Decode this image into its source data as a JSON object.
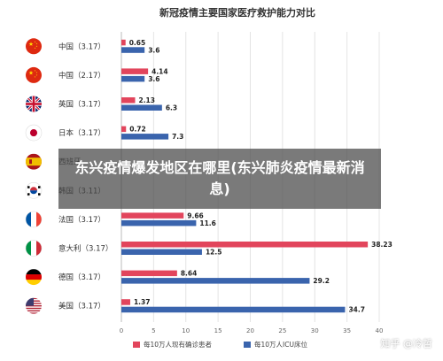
{
  "chart_data": {
    "type": "bar",
    "orientation": "horizontal",
    "title": "新冠疫情主要国家医疗救护能力对比",
    "categories": [
      {
        "label": "中国（3.17）",
        "flag": "china-flag"
      },
      {
        "label": "中国（2.17）",
        "flag": "china-flag"
      },
      {
        "label": "英国（3.17）",
        "flag": "uk-flag"
      },
      {
        "label": "日本（3.17）",
        "flag": "japan-flag"
      },
      {
        "label": "西班牙",
        "flag": "spain-flag"
      },
      {
        "label": "韩国（3.11）",
        "flag": "korea-flag"
      },
      {
        "label": "法国（3.17）",
        "flag": "france-flag"
      },
      {
        "label": "意大利（3.17）",
        "flag": "italy-flag"
      },
      {
        "label": "德国（3.17）",
        "flag": "germany-flag"
      },
      {
        "label": "美国（3.17）",
        "flag": "usa-flag"
      }
    ],
    "series": [
      {
        "name": "每10万人现有确诊患者",
        "color": "#e2455c",
        "values": [
          0.65,
          4.14,
          2.13,
          0.72,
          null,
          null,
          9.66,
          38.23,
          8.64,
          1.37
        ],
        "labels": [
          "0.65",
          "4.14",
          "2.13",
          "0.72",
          "",
          "",
          "9.66",
          "38.23",
          "8.64",
          "1.37"
        ]
      },
      {
        "name": "每10万人ICU床位",
        "color": "#3a64ad",
        "values": [
          3.6,
          3.6,
          6.3,
          7.3,
          null,
          null,
          11.6,
          12.5,
          29.2,
          34.7
        ],
        "labels": [
          "3.6",
          "3.6",
          "6.3",
          "7.3",
          "",
          "",
          "11.6",
          "12.5",
          "29.2",
          "34.7"
        ]
      }
    ],
    "xlim": [
      0,
      40
    ],
    "xticks": [
      "0",
      "5",
      "10",
      "15",
      "20",
      "25",
      "30",
      "35",
      "40"
    ],
    "grid": true,
    "legend": "bottom-center"
  },
  "overlay": {
    "headline": "东兴疫情爆发地区在哪里(东兴肺炎疫情最新消息)"
  },
  "watermark": "知乎 @冷哲"
}
